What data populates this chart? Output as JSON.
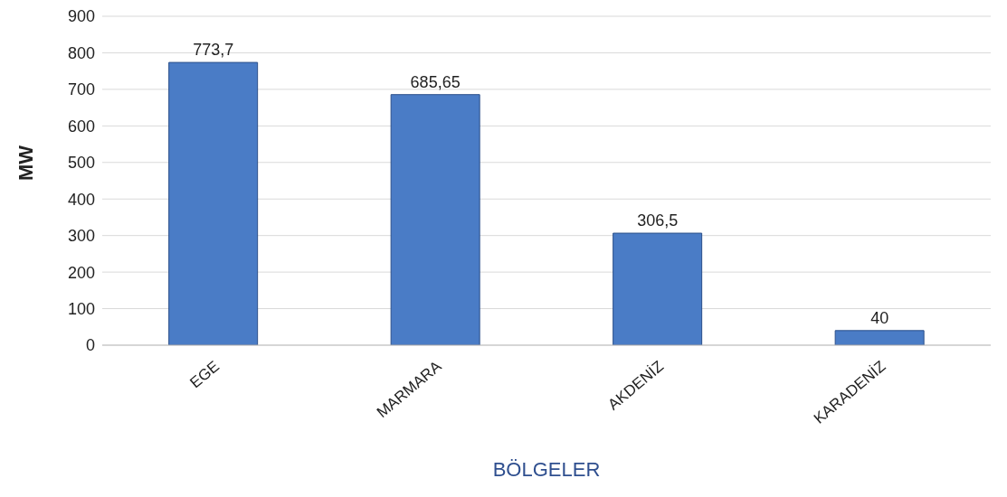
{
  "chart_data": {
    "type": "bar",
    "xlabel": "BÖLGELER",
    "ylabel": "MW",
    "categories": [
      "EGE",
      "MARMARA",
      "AKDENİZ",
      "KARADENİZ"
    ],
    "values": [
      773.7,
      685.65,
      306.5,
      40
    ],
    "value_labels": [
      "773,7",
      "685,65",
      "306,5",
      "40"
    ],
    "color": "#4a7cc6",
    "ylim": [
      0,
      900
    ],
    "yticks": [
      0,
      100,
      200,
      300,
      400,
      500,
      600,
      700,
      800,
      900
    ],
    "grid": "y"
  }
}
